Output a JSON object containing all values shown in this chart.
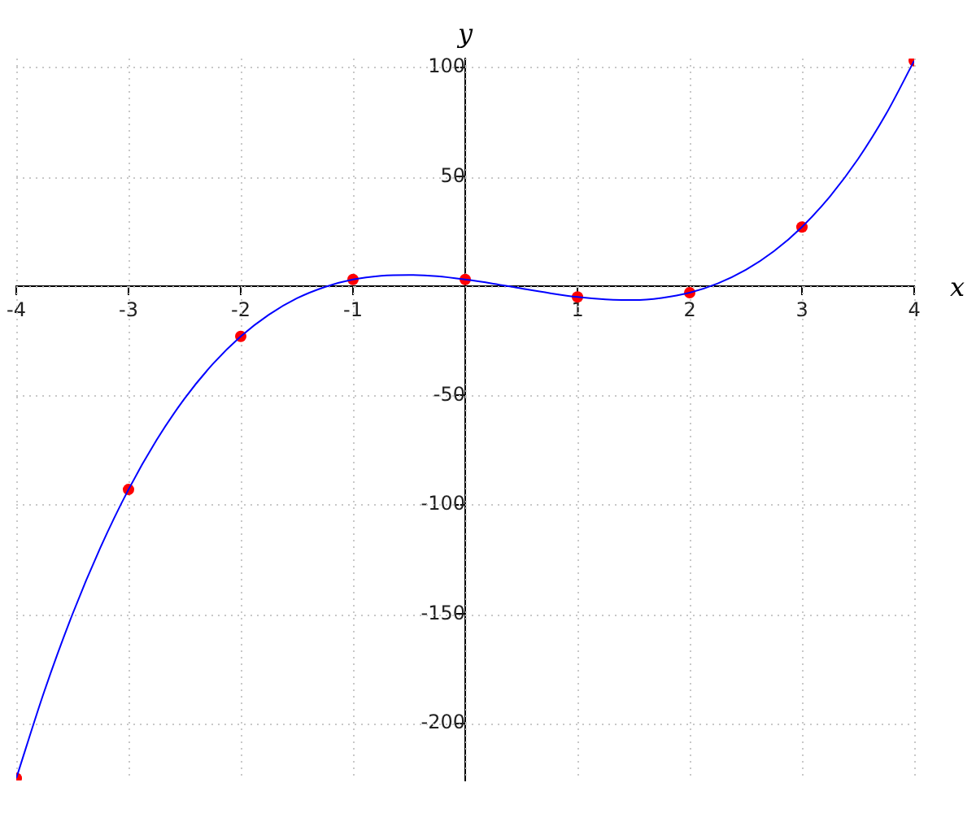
{
  "chart_data": {
    "type": "line",
    "xlabel": "x",
    "ylabel": "y",
    "xlim": [
      -4,
      4
    ],
    "ylim": [
      -226,
      104
    ],
    "xticks": [
      -4,
      -3,
      -2,
      -1,
      {
        "value": 0,
        "label": null
      },
      1,
      2,
      3,
      4
    ],
    "yticks": [
      -200,
      -150,
      -100,
      -50,
      {
        "value": 0,
        "label": null
      },
      50,
      100
    ],
    "grid": true,
    "legend": false,
    "series": [
      {
        "color": "#0000ff",
        "marker": "none",
        "line_style": "solid",
        "x": [
          -4,
          -3.75,
          -3.5,
          -3.25,
          -3,
          -2.75,
          -2.5,
          -2.25,
          -2,
          -1.75,
          -1.5,
          -1.25,
          -1,
          -0.75,
          -0.5,
          -0.25,
          0,
          0.25,
          0.5,
          0.75,
          1,
          1.25,
          1.5,
          1.75,
          2,
          2.25,
          2.5,
          2.75,
          3,
          3.25,
          3.5,
          3.75,
          4
        ],
        "values": [
          -225,
          -185.2,
          -150.1,
          -119.5,
          -93,
          -70.4,
          -51.4,
          -35.7,
          -23,
          -13.1,
          -5.6,
          -0.4,
          3,
          4.7,
          5.1,
          4.5,
          3,
          1.1,
          -1.1,
          -3.2,
          -5,
          -6.1,
          -6.4,
          -5.4,
          -3,
          1.2,
          7.4,
          15.9,
          27,
          41,
          58.1,
          78.7,
          103
        ]
      },
      {
        "type": "scatter",
        "color": "#ff0000",
        "marker": "circle",
        "x": [
          -4,
          -3,
          -2,
          -1,
          0,
          1,
          2,
          3,
          4
        ],
        "values": [
          -225,
          -93,
          -23,
          3,
          3,
          -5,
          -3,
          27,
          103
        ]
      }
    ]
  }
}
